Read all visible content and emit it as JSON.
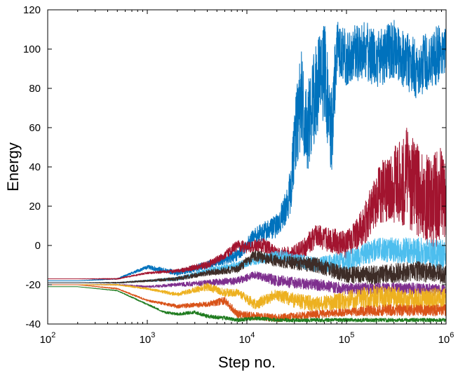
{
  "chart_data": {
    "type": "line",
    "title": "",
    "xlabel": "Step no.",
    "ylabel": "Energy",
    "xscale": "log",
    "xlim": [
      100,
      1000000
    ],
    "ylim": [
      -40,
      120
    ],
    "grid": false,
    "legend": "none",
    "x_ticks": [
      {
        "value": 100,
        "base": "10",
        "exp": "2"
      },
      {
        "value": 1000,
        "base": "10",
        "exp": "3"
      },
      {
        "value": 10000,
        "base": "10",
        "exp": "4"
      },
      {
        "value": 100000,
        "base": "10",
        "exp": "5"
      },
      {
        "value": 1000000,
        "base": "10",
        "exp": "6"
      }
    ],
    "y_ticks": [
      "-40",
      "-20",
      "0",
      "20",
      "40",
      "60",
      "80",
      "100",
      "120"
    ],
    "series": [
      {
        "color": "#0072bd",
        "x": [
          100,
          200,
          500,
          1000,
          2000,
          4000,
          8000,
          12000,
          20000,
          25000,
          28000,
          30000,
          35000,
          40000,
          50000,
          60000,
          70000,
          80000,
          100000,
          150000,
          200000,
          300000,
          500000,
          1000000
        ],
        "y": [
          -18,
          -18,
          -17,
          -11,
          -14,
          -10,
          -5,
          5,
          10,
          20,
          30,
          55,
          75,
          60,
          80,
          90,
          55,
          100,
          95,
          100,
          95,
          100,
          90,
          100
        ],
        "noise": [
          0,
          0,
          0.3,
          1,
          1.5,
          2,
          3,
          4,
          6,
          9,
          12,
          20,
          25,
          25,
          25,
          25,
          25,
          15,
          15,
          15,
          15,
          15,
          15,
          15
        ]
      },
      {
        "color": "#a2142f",
        "x": [
          100,
          200,
          500,
          1000,
          2000,
          4000,
          6000,
          8000,
          10000,
          15000,
          20000,
          30000,
          50000,
          100000,
          150000,
          200000,
          300000,
          400000,
          500000,
          700000,
          1000000
        ],
        "y": [
          -17,
          -17,
          -17,
          -14,
          -13,
          -10,
          -5,
          0,
          -1,
          0,
          -5,
          -5,
          5,
          0,
          10,
          25,
          30,
          35,
          30,
          20,
          30
        ],
        "noise": [
          0,
          0,
          0.3,
          0.5,
          1,
          2,
          2,
          3,
          3,
          4,
          4,
          5,
          6,
          7,
          10,
          15,
          20,
          25,
          25,
          25,
          25
        ]
      },
      {
        "color": "#4dbeee",
        "x": [
          100,
          200,
          500,
          1000,
          2000,
          4000,
          8000,
          12000,
          20000,
          50000,
          100000,
          200000,
          500000,
          1000000
        ],
        "y": [
          -19,
          -19,
          -19,
          -18,
          -17,
          -13,
          -10,
          -8,
          -5,
          -10,
          -8,
          -2,
          -3,
          -5
        ],
        "noise": [
          0,
          0,
          0.3,
          0.5,
          1,
          1.5,
          2,
          2,
          3,
          4,
          5,
          6,
          7,
          8
        ]
      },
      {
        "color": "#3d2c27",
        "x": [
          100,
          200,
          500,
          1000,
          2000,
          4000,
          8000,
          12000,
          20000,
          50000,
          100000,
          200000,
          500000,
          1000000
        ],
        "y": [
          -19,
          -19,
          -19,
          -18,
          -17,
          -14,
          -12,
          -5,
          -8,
          -10,
          -15,
          -15,
          -13,
          -15
        ],
        "noise": [
          0,
          0,
          0.3,
          0.5,
          1,
          1.5,
          2,
          3,
          3,
          4,
          4,
          5,
          5,
          5
        ]
      },
      {
        "color": "#7e2f8e",
        "x": [
          100,
          200,
          500,
          1000,
          2000,
          4000,
          8000,
          12000,
          20000,
          50000,
          100000,
          200000,
          500000,
          1000000
        ],
        "y": [
          -20,
          -20,
          -20,
          -21,
          -20,
          -19,
          -18,
          -15,
          -18,
          -20,
          -22,
          -22,
          -22,
          -23
        ],
        "noise": [
          0,
          0,
          0.3,
          0.5,
          1,
          1.5,
          2,
          2,
          3,
          3,
          3,
          3,
          3,
          3
        ]
      },
      {
        "color": "#edb120",
        "x": [
          100,
          200,
          500,
          1000,
          2000,
          4000,
          6000,
          8000,
          12000,
          20000,
          30000,
          50000,
          100000,
          200000,
          500000,
          1000000
        ],
        "y": [
          -20,
          -20,
          -20,
          -22,
          -25,
          -21,
          -24,
          -24,
          -30,
          -25,
          -28,
          -30,
          -28,
          -26,
          -28,
          -27
        ],
        "noise": [
          0,
          0,
          0.3,
          0.5,
          1,
          2,
          2,
          2,
          3,
          3,
          4,
          4,
          5,
          6,
          6,
          6
        ]
      },
      {
        "color": "#d95319",
        "x": [
          100,
          200,
          500,
          1000,
          2000,
          4000,
          6000,
          8000,
          12000,
          20000,
          50000,
          100000,
          200000,
          500000,
          1000000
        ],
        "y": [
          -20,
          -20,
          -22,
          -28,
          -31,
          -30,
          -28,
          -35,
          -36,
          -37,
          -35,
          -34,
          -33,
          -33,
          -33
        ],
        "noise": [
          0,
          0,
          0.3,
          0.5,
          1,
          1.5,
          2,
          2,
          2,
          2,
          2,
          2,
          3,
          3,
          3
        ]
      },
      {
        "color": "#1e7b1e",
        "x": [
          100,
          200,
          500,
          1000,
          1500,
          2000,
          3000,
          4000,
          6000,
          8000,
          12000,
          20000,
          50000,
          100000,
          200000,
          500000,
          1000000
        ],
        "y": [
          -21,
          -21,
          -23,
          -30,
          -34,
          -35,
          -34,
          -36,
          -37,
          -38,
          -37,
          -38,
          -38,
          -38,
          -38,
          -38,
          -38
        ],
        "noise": [
          0,
          0,
          0.2,
          0.4,
          0.6,
          0.8,
          0.8,
          1,
          1,
          1,
          1,
          1,
          1,
          1,
          1,
          1,
          1
        ]
      }
    ]
  }
}
